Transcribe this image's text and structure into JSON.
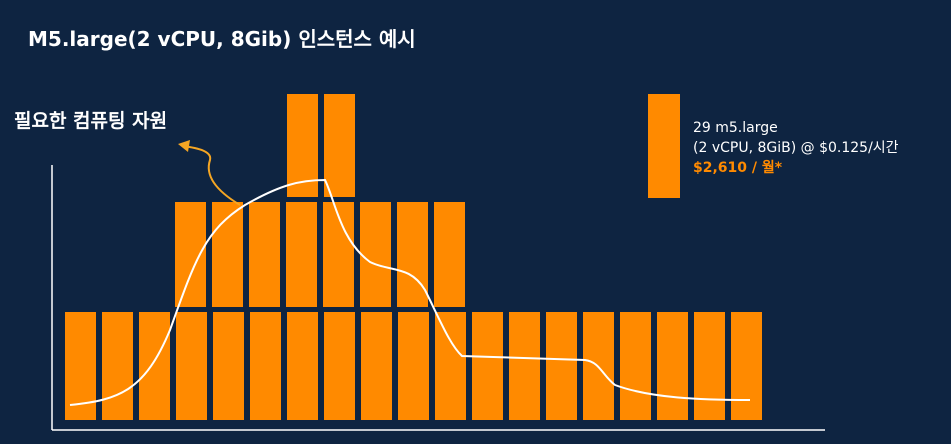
{
  "title": "M5.large(2 vCPU, 8Gib) 인스턴스 예시",
  "curve_label": "필요한 컴퓨팅 자원",
  "legend": {
    "line1": "29 m5.large",
    "line2": "(2 vCPU, 8GiB) @ $0.125/시간",
    "line3": "$2,610 / 월*"
  }
}
